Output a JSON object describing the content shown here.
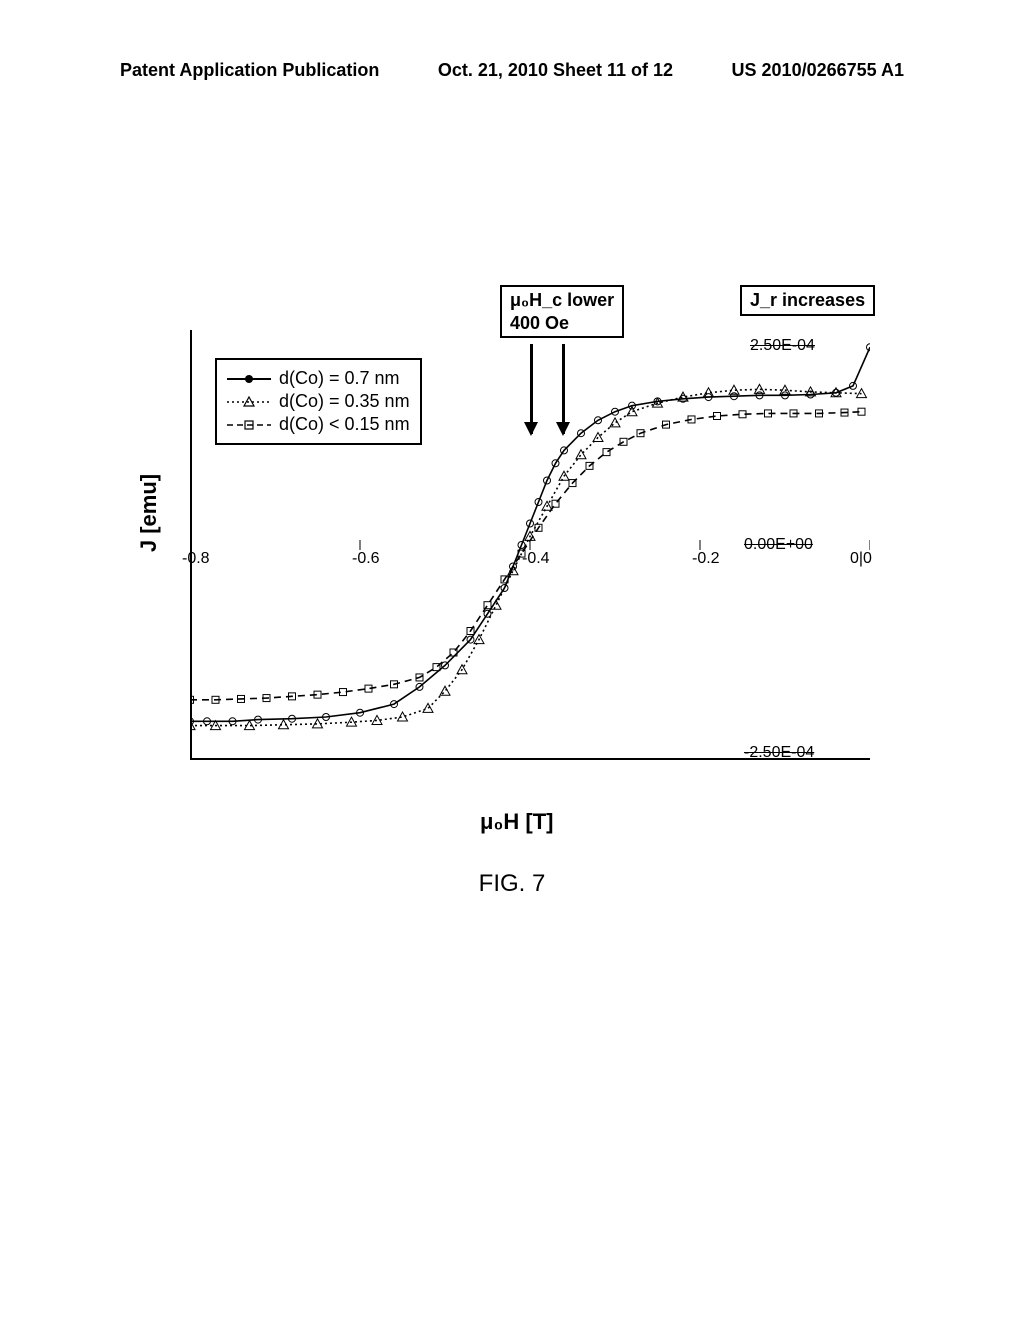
{
  "header": {
    "left": "Patent Application Publication",
    "center": "Oct. 21, 2010  Sheet 11 of 12",
    "right": "US 2010/0266755 A1"
  },
  "figure_caption": "FIG. 7",
  "chart": {
    "type": "line",
    "x_label": "μ₀H [T]",
    "y_label": "J [emu]",
    "xlim": [
      -0.8,
      0.0
    ],
    "ylim": [
      -0.00025,
      0.00025
    ],
    "x_ticks": [
      {
        "pos": -0.8,
        "label": "-0.8"
      },
      {
        "pos": -0.6,
        "label": "-0.6"
      },
      {
        "pos": -0.4,
        "label": "-0.4"
      },
      {
        "pos": -0.2,
        "label": "-0.2"
      },
      {
        "pos": 0.0,
        "label": "0|0"
      }
    ],
    "y_ticks": [
      {
        "pos": 0.00025,
        "label": "2.50E-04"
      },
      {
        "pos": 0.0,
        "label": "0.00E+00"
      },
      {
        "pos": -0.00025,
        "label": "-2.50E-04"
      }
    ],
    "annotations": {
      "hc_box": {
        "line1": "μ₀H_c lower",
        "line2": "400 Oe"
      },
      "jr_box": "J_r increases"
    },
    "legend": [
      {
        "label": "d(Co) = 0.7 nm",
        "style": "solid-circle",
        "color": "#000000"
      },
      {
        "label": "d(Co) = 0.35 nm",
        "style": "dotted-triangle",
        "color": "#000000"
      },
      {
        "label": "d(Co) < 0.15 nm",
        "style": "dashed-square",
        "color": "#000000"
      }
    ],
    "series": {
      "s1_solid_circle": {
        "x": [
          -0.8,
          -0.78,
          -0.75,
          -0.72,
          -0.68,
          -0.64,
          -0.6,
          -0.56,
          -0.53,
          -0.5,
          -0.47,
          -0.45,
          -0.43,
          -0.42,
          -0.41,
          -0.4,
          -0.39,
          -0.38,
          -0.37,
          -0.36,
          -0.34,
          -0.32,
          -0.3,
          -0.28,
          -0.25,
          -0.22,
          -0.19,
          -0.16,
          -0.13,
          -0.1,
          -0.07,
          -0.04,
          -0.02,
          0.0
        ],
        "y": [
          -0.000205,
          -0.000205,
          -0.000205,
          -0.000203,
          -0.000202,
          -0.0002,
          -0.000195,
          -0.000185,
          -0.000165,
          -0.00014,
          -0.00011,
          -8e-05,
          -5e-05,
          -2.5e-05,
          0.0,
          2.5e-05,
          5e-05,
          7.5e-05,
          9.5e-05,
          0.00011,
          0.00013,
          0.000145,
          0.000155,
          0.000162,
          0.000167,
          0.00017,
          0.000172,
          0.000173,
          0.000174,
          0.000174,
          0.000175,
          0.000177,
          0.000185,
          0.00023
        ]
      },
      "s2_dotted_triangle": {
        "x": [
          -0.8,
          -0.77,
          -0.73,
          -0.69,
          -0.65,
          -0.61,
          -0.58,
          -0.55,
          -0.52,
          -0.5,
          -0.48,
          -0.46,
          -0.44,
          -0.42,
          -0.4,
          -0.38,
          -0.36,
          -0.34,
          -0.32,
          -0.3,
          -0.28,
          -0.25,
          -0.22,
          -0.19,
          -0.16,
          -0.13,
          -0.1,
          -0.07,
          -0.04,
          -0.01
        ],
        "y": [
          -0.00021,
          -0.00021,
          -0.00021,
          -0.000209,
          -0.000208,
          -0.000206,
          -0.000204,
          -0.0002,
          -0.00019,
          -0.00017,
          -0.000145,
          -0.00011,
          -7e-05,
          -3e-05,
          1e-05,
          4.5e-05,
          8e-05,
          0.000105,
          0.000125,
          0.000142,
          0.000155,
          0.000165,
          0.000172,
          0.000177,
          0.00018,
          0.000181,
          0.00018,
          0.000178,
          0.000177,
          0.000176
        ]
      },
      "s3_dashed_square": {
        "x": [
          -0.8,
          -0.77,
          -0.74,
          -0.71,
          -0.68,
          -0.65,
          -0.62,
          -0.59,
          -0.56,
          -0.53,
          -0.51,
          -0.49,
          -0.47,
          -0.45,
          -0.43,
          -0.41,
          -0.39,
          -0.37,
          -0.35,
          -0.33,
          -0.31,
          -0.29,
          -0.27,
          -0.24,
          -0.21,
          -0.18,
          -0.15,
          -0.12,
          -0.09,
          -0.06,
          -0.03,
          -0.01
        ],
        "y": [
          -0.00018,
          -0.00018,
          -0.000179,
          -0.000178,
          -0.000176,
          -0.000174,
          -0.000171,
          -0.000167,
          -0.000162,
          -0.000154,
          -0.000142,
          -0.000125,
          -0.0001,
          -7e-05,
          -4e-05,
          -1e-05,
          2e-05,
          4.8e-05,
          7.2e-05,
          9.2e-05,
          0.000108,
          0.00012,
          0.00013,
          0.00014,
          0.000146,
          0.00015,
          0.000152,
          0.000153,
          0.000153,
          0.000153,
          0.000154,
          0.000155
        ]
      }
    },
    "colors": {
      "stroke": "#000000",
      "background": "#ffffff",
      "frame": "#000000"
    },
    "line_width": 1.6,
    "marker_size": 5
  }
}
